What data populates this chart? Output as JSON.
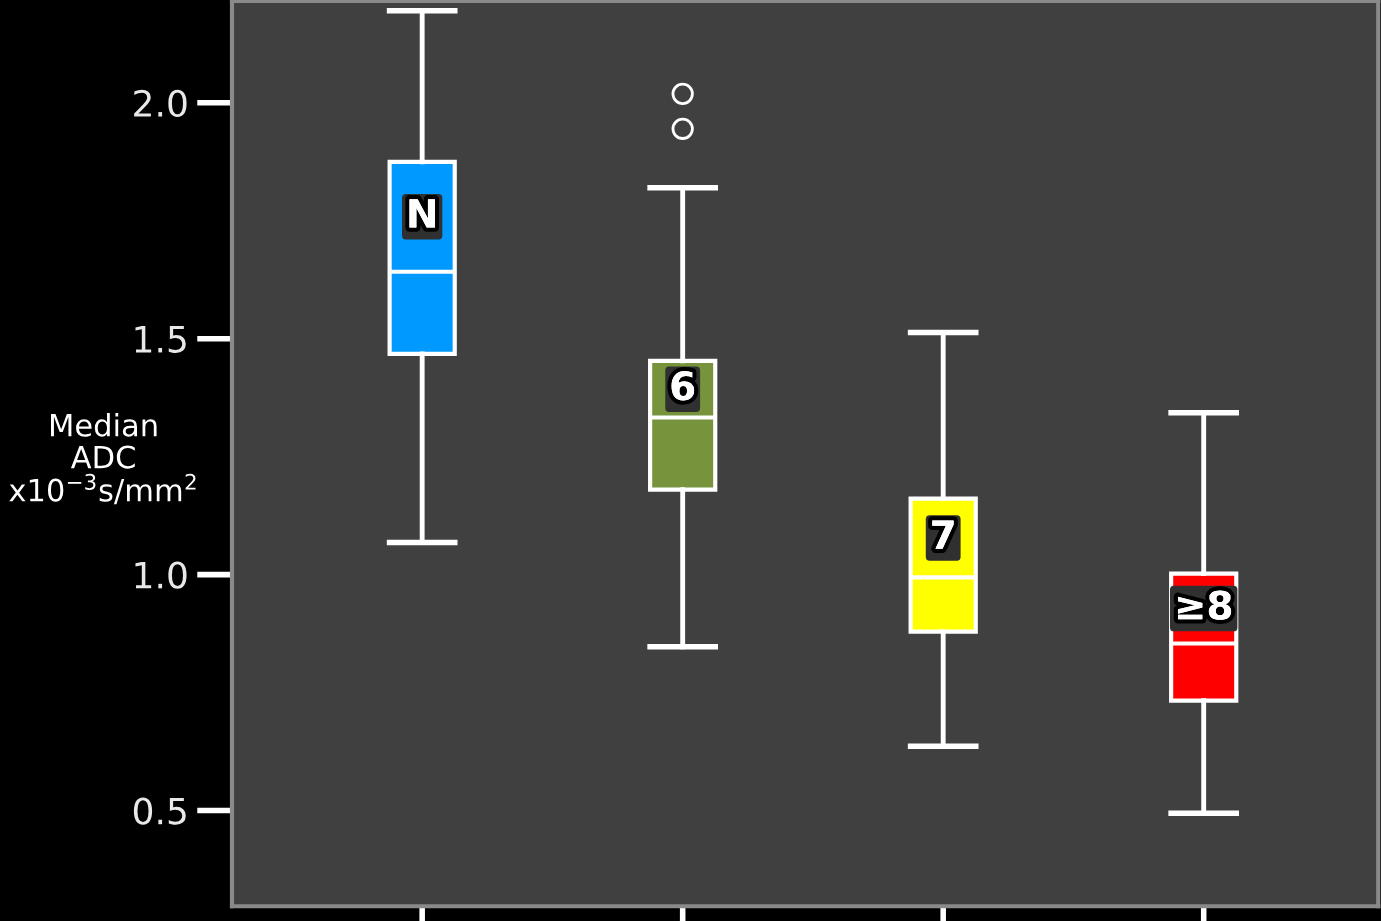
{
  "chart_data": {
    "type": "box",
    "ylabel": "Median\nADC\nx10$^{−3}$s/mm$^{2}$",
    "categories": [
      "N",
      "6",
      "7",
      "≥8"
    ],
    "colors": [
      "#0099ff",
      "#77933c",
      "#ffff00",
      "#ff0000"
    ],
    "boxes": [
      {
        "low": 1.068,
        "q1": 1.468,
        "median": 1.642,
        "q3": 1.875,
        "high": 2.195
      },
      {
        "low": 0.847,
        "q1": 1.18,
        "median": 1.333,
        "q3": 1.453,
        "high": 1.82,
        "outliers": [
          1.945,
          2.019
        ]
      },
      {
        "low": 0.636,
        "q1": 0.879,
        "median": 0.994,
        "q3": 1.161,
        "high": 1.513
      },
      {
        "low": 0.494,
        "q1": 0.733,
        "median": 0.854,
        "q3": 1.002,
        "high": 1.343
      }
    ],
    "ylim": [
      0.297,
      2.216
    ],
    "yticks": [
      {
        "value": 0.5,
        "label": "0.5"
      },
      {
        "value": 1.0,
        "label": "1.0"
      },
      {
        "value": 1.5,
        "label": "1.5"
      },
      {
        "value": 2.0,
        "label": "2.0"
      }
    ],
    "tick_labels": "y",
    "grid": false
  }
}
